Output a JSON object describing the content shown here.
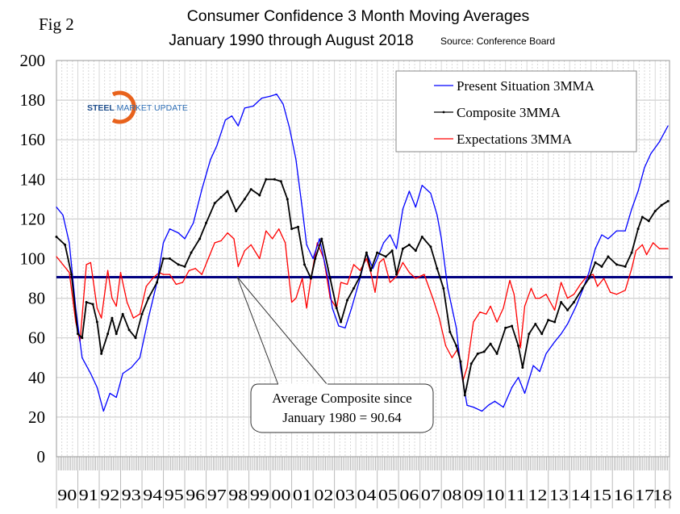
{
  "figure_label": "Fig 2",
  "logo_text": "STEEL MARKET UPDATE",
  "chart_data": {
    "type": "line",
    "title": "Consumer Confidence 3 Month Moving Averages",
    "subtitle": "January 1990 through August 2018",
    "source": "Source: Conference Board",
    "xlabel": "",
    "ylabel": "",
    "xlim": [
      1990,
      2018.67
    ],
    "ylim": [
      0,
      200
    ],
    "yticks": [
      "0",
      "20",
      "40",
      "60",
      "80",
      "100",
      "120",
      "140",
      "160",
      "180",
      "200"
    ],
    "xticks": [
      "90",
      "91",
      "92",
      "93",
      "94",
      "95",
      "96",
      "97",
      "98",
      "99",
      "00",
      "01",
      "02",
      "03",
      "04",
      "05",
      "06",
      "07",
      "08",
      "09",
      "10",
      "11",
      "12",
      "13",
      "14",
      "15",
      "16",
      "17",
      "18"
    ],
    "grid": true,
    "legend": {
      "placement": "top-right"
    },
    "reference_line": {
      "value": 90.64,
      "color": "#000080"
    },
    "annotation": {
      "line1": "Average Composite since",
      "line2": "January 1980 = 90.64"
    },
    "series": [
      {
        "name": "Present Situation 3MMA",
        "color": "#0000ff",
        "marker": false,
        "x": [
          1990.0,
          1990.3,
          1990.6,
          1990.9,
          1991.2,
          1991.6,
          1991.9,
          1992.2,
          1992.5,
          1992.8,
          1993.1,
          1993.5,
          1993.9,
          1994.3,
          1994.7,
          1995.0,
          1995.3,
          1995.7,
          1996.0,
          1996.4,
          1996.8,
          1997.2,
          1997.5,
          1997.9,
          1998.2,
          1998.5,
          1998.8,
          1999.2,
          1999.6,
          2000.0,
          2000.3,
          2000.6,
          2000.9,
          2001.2,
          2001.5,
          2001.7,
          2002.0,
          2002.3,
          2002.7,
          2002.9,
          2003.2,
          2003.5,
          2003.8,
          2004.2,
          2004.5,
          2004.8,
          2005.0,
          2005.3,
          2005.6,
          2005.9,
          2006.2,
          2006.5,
          2006.8,
          2007.1,
          2007.5,
          2007.8,
          2008.0,
          2008.3,
          2008.7,
          2008.9,
          2009.2,
          2009.5,
          2009.9,
          2010.2,
          2010.5,
          2010.9,
          2011.3,
          2011.6,
          2011.9,
          2012.3,
          2012.6,
          2012.9,
          2013.3,
          2013.6,
          2013.9,
          2014.3,
          2014.6,
          2014.9,
          2015.2,
          2015.5,
          2015.8,
          2016.2,
          2016.6,
          2016.9,
          2017.2,
          2017.5,
          2017.8,
          2018.2,
          2018.6
        ],
        "y": [
          126,
          122,
          108,
          75,
          50,
          42,
          35,
          23,
          32,
          30,
          42,
          45,
          50,
          70,
          88,
          108,
          115,
          113,
          110,
          118,
          135,
          150,
          157,
          170,
          172,
          167,
          176,
          177,
          181,
          182,
          183,
          178,
          166,
          150,
          125,
          107,
          100,
          110,
          90,
          75,
          66,
          65,
          75,
          90,
          103,
          95,
          100,
          108,
          112,
          105,
          125,
          134,
          126,
          137,
          133,
          122,
          110,
          85,
          65,
          45,
          26,
          25,
          23,
          26,
          28,
          25,
          35,
          40,
          32,
          46,
          43,
          52,
          58,
          62,
          67,
          76,
          84,
          93,
          105,
          112,
          110,
          114,
          114,
          125,
          134,
          146,
          153,
          159,
          167
        ]
      },
      {
        "name": "Composite 3MMA",
        "color": "#000000",
        "marker": true,
        "x": [
          1990.0,
          1990.4,
          1990.7,
          1991.0,
          1991.2,
          1991.4,
          1991.7,
          1991.9,
          1992.1,
          1992.4,
          1992.6,
          1992.8,
          1993.1,
          1993.4,
          1993.7,
          1994.0,
          1994.3,
          1994.7,
          1995.0,
          1995.3,
          1995.7,
          1996.0,
          1996.3,
          1996.7,
          1997.0,
          1997.4,
          1997.7,
          1998.0,
          1998.4,
          1998.8,
          1999.1,
          1999.5,
          1999.8,
          2000.2,
          2000.5,
          2000.8,
          2001.0,
          2001.3,
          2001.6,
          2001.9,
          2002.1,
          2002.4,
          2002.8,
          2003.1,
          2003.3,
          2003.6,
          2003.9,
          2004.2,
          2004.5,
          2004.7,
          2005.0,
          2005.4,
          2005.7,
          2005.9,
          2006.2,
          2006.5,
          2006.8,
          2007.1,
          2007.5,
          2007.8,
          2008.1,
          2008.4,
          2008.7,
          2008.9,
          2009.1,
          2009.4,
          2009.7,
          2010.0,
          2010.3,
          2010.6,
          2011.0,
          2011.3,
          2011.6,
          2011.8,
          2012.1,
          2012.4,
          2012.7,
          2013.0,
          2013.3,
          2013.6,
          2013.9,
          2014.2,
          2014.6,
          2014.9,
          2015.2,
          2015.5,
          2015.8,
          2016.2,
          2016.6,
          2016.9,
          2017.2,
          2017.4,
          2017.7,
          2018.0,
          2018.3,
          2018.6
        ],
        "y": [
          111,
          107,
          92,
          62,
          60,
          78,
          77,
          68,
          52,
          62,
          70,
          62,
          72,
          64,
          60,
          72,
          80,
          88,
          100,
          100,
          97,
          96,
          103,
          110,
          118,
          128,
          131,
          134,
          124,
          130,
          135,
          132,
          140,
          140,
          139,
          130,
          115,
          116,
          97,
          90,
          100,
          110,
          90,
          75,
          68,
          79,
          85,
          91,
          103,
          94,
          103,
          101,
          104,
          92,
          105,
          107,
          104,
          111,
          106,
          95,
          85,
          63,
          56,
          48,
          31,
          47,
          52,
          53,
          57,
          52,
          65,
          66,
          56,
          45,
          62,
          67,
          62,
          69,
          68,
          78,
          74,
          78,
          85,
          90,
          98,
          96,
          101,
          97,
          96,
          103,
          115,
          121,
          119,
          124,
          127,
          129
        ]
      },
      {
        "name": "Expectations 3MMA",
        "color": "#ff0000",
        "marker": false,
        "x": [
          1990.0,
          1990.3,
          1990.6,
          1990.9,
          1991.1,
          1991.4,
          1991.6,
          1991.9,
          1992.1,
          1992.4,
          1992.6,
          1992.8,
          1993.0,
          1993.3,
          1993.6,
          1993.9,
          1994.2,
          1994.5,
          1994.8,
          1995.0,
          1995.3,
          1995.6,
          1995.9,
          1996.2,
          1996.5,
          1996.8,
          1997.1,
          1997.4,
          1997.7,
          1998.0,
          1998.3,
          1998.5,
          1998.8,
          1999.1,
          1999.5,
          1999.8,
          2000.1,
          2000.4,
          2000.7,
          2001.0,
          2001.2,
          2001.5,
          2001.7,
          2001.9,
          2002.2,
          2002.5,
          2002.8,
          2003.1,
          2003.3,
          2003.6,
          2003.9,
          2004.2,
          2004.5,
          2004.7,
          2004.9,
          2005.1,
          2005.3,
          2005.6,
          2005.9,
          2006.2,
          2006.5,
          2006.8,
          2007.2,
          2007.6,
          2007.9,
          2008.2,
          2008.5,
          2008.8,
          2009.0,
          2009.2,
          2009.5,
          2009.8,
          2010.1,
          2010.3,
          2010.6,
          2010.9,
          2011.2,
          2011.4,
          2011.7,
          2011.9,
          2012.2,
          2012.4,
          2012.6,
          2012.9,
          2013.1,
          2013.3,
          2013.6,
          2013.9,
          2014.2,
          2014.5,
          2014.8,
          2015.1,
          2015.3,
          2015.6,
          2015.9,
          2016.2,
          2016.6,
          2016.9,
          2017.1,
          2017.4,
          2017.6,
          2017.9,
          2018.2,
          2018.6
        ],
        "y": [
          101,
          97,
          93,
          68,
          58,
          97,
          98,
          75,
          70,
          94,
          80,
          76,
          93,
          78,
          70,
          72,
          86,
          90,
          93,
          92,
          92,
          87,
          88,
          94,
          95,
          92,
          100,
          108,
          109,
          113,
          110,
          96,
          104,
          107,
          100,
          114,
          110,
          115,
          108,
          78,
          80,
          90,
          75,
          90,
          108,
          100,
          80,
          75,
          88,
          87,
          97,
          94,
          100,
          93,
          83,
          98,
          100,
          88,
          91,
          98,
          93,
          90,
          92,
          80,
          70,
          56,
          50,
          55,
          38,
          45,
          68,
          73,
          72,
          76,
          68,
          75,
          89,
          82,
          55,
          76,
          85,
          80,
          80,
          82,
          78,
          74,
          88,
          80,
          82,
          87,
          91,
          92,
          86,
          90,
          83,
          82,
          84,
          95,
          104,
          107,
          102,
          108,
          105,
          105
        ]
      }
    ]
  }
}
